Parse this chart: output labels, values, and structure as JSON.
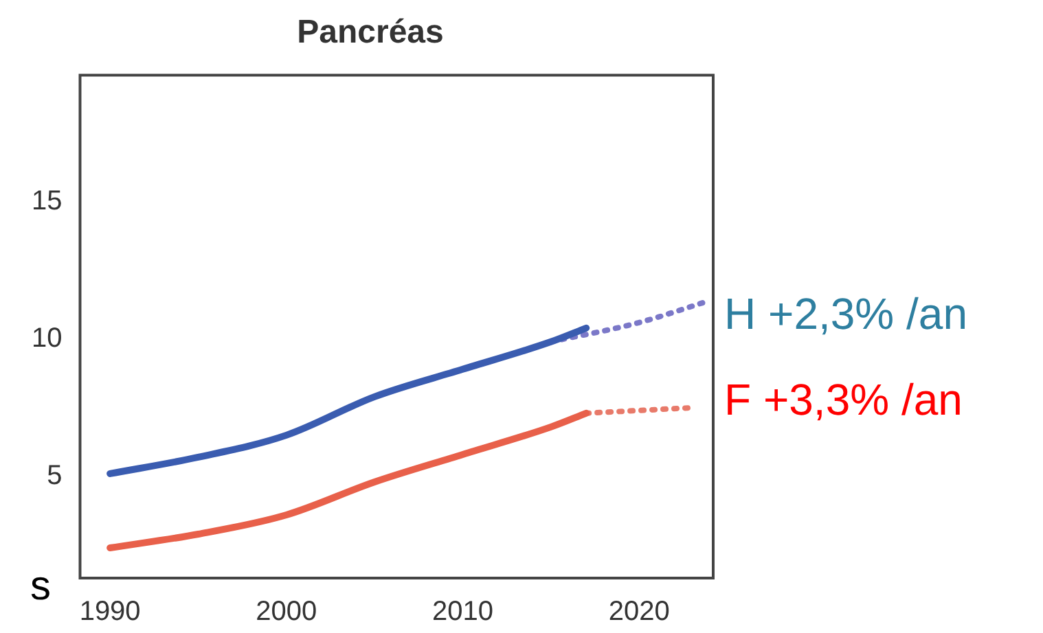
{
  "chart_data": {
    "type": "line",
    "title": "Pancréas",
    "xlim": [
      1988.3,
      2024.2
    ],
    "xticks": [
      1990,
      2000,
      2010,
      2020
    ],
    "ylim": [
      1.3,
      19.6
    ],
    "yticks": [
      5,
      10,
      15
    ],
    "grid": false,
    "legend": false,
    "marker": "none",
    "series": [
      {
        "name": "H +2,3% /an",
        "color": "#3a5cb0",
        "x": [
          1990,
          1995,
          2000,
          2005,
          2010,
          2015,
          2017
        ],
        "values": [
          5.1,
          5.7,
          6.5,
          7.9,
          8.9,
          9.9,
          10.4
        ]
      },
      {
        "color": "#7b78c8",
        "line_style": "dotted",
        "x": [
          2015,
          2020,
          2024
        ],
        "values": [
          9.9,
          10.6,
          11.4
        ]
      },
      {
        "name": "F +3,3% /an",
        "color": "#e8604a",
        "x": [
          1990,
          1995,
          2000,
          2005,
          2010,
          2015,
          2017
        ],
        "values": [
          2.4,
          2.9,
          3.6,
          4.8,
          5.8,
          6.8,
          7.3
        ]
      },
      {
        "color": "#e87a6a",
        "line_style": "dotted",
        "x": [
          2017,
          2020,
          2023
        ],
        "values": [
          7.3,
          7.4,
          7.5
        ]
      }
    ],
    "annotations": [
      "s"
    ]
  }
}
